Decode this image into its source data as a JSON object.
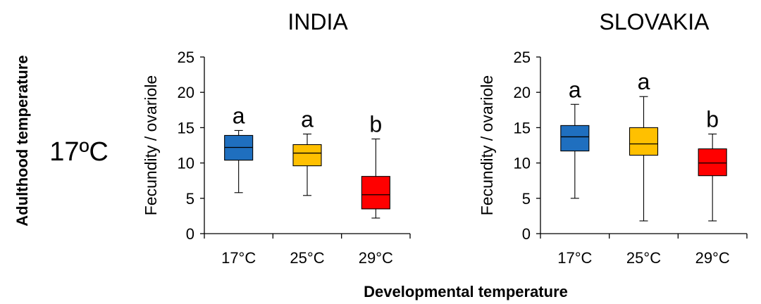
{
  "figure": {
    "row_axis_label": "Adulthood temperature",
    "row_label": "17ºC",
    "x_axis_label": "Developmental temperature"
  },
  "chart_data": [
    {
      "type": "box",
      "title": "INDIA",
      "ylabel": "Fecundity / ovariole",
      "ylim": [
        0,
        25
      ],
      "yticks": [
        0,
        5,
        10,
        15,
        20,
        25
      ],
      "categories": [
        "17°C",
        "25°C",
        "29°C"
      ],
      "boxes": [
        {
          "category": "17°C",
          "min": 5.8,
          "q1": 10.4,
          "median": 12.2,
          "q3": 13.9,
          "max": 14.6,
          "letter": "a",
          "color": "#1f6fbf"
        },
        {
          "category": "25°C",
          "min": 5.4,
          "q1": 9.6,
          "median": 11.4,
          "q3": 12.6,
          "max": 14.1,
          "letter": "a",
          "color": "#ffc000"
        },
        {
          "category": "29°C",
          "min": 2.2,
          "q1": 3.5,
          "median": 5.5,
          "q3": 8.1,
          "max": 13.4,
          "letter": "b",
          "color": "#ff0000"
        }
      ]
    },
    {
      "type": "box",
      "title": "SLOVAKIA",
      "ylabel": "Fecundity / ovariole",
      "ylim": [
        0,
        25
      ],
      "yticks": [
        0,
        5,
        10,
        15,
        20,
        25
      ],
      "categories": [
        "17°C",
        "25°C",
        "29°C"
      ],
      "boxes": [
        {
          "category": "17°C",
          "min": 5.0,
          "q1": 11.7,
          "median": 13.7,
          "q3": 15.3,
          "max": 18.3,
          "letter": "a",
          "color": "#1f6fbf"
        },
        {
          "category": "25°C",
          "min": 1.8,
          "q1": 11.1,
          "median": 12.7,
          "q3": 15.0,
          "max": 19.4,
          "letter": "a",
          "color": "#ffc000"
        },
        {
          "category": "29°C",
          "min": 1.8,
          "q1": 8.2,
          "median": 10.0,
          "q3": 12.0,
          "max": 14.1,
          "letter": "b",
          "color": "#ff0000"
        }
      ]
    }
  ]
}
